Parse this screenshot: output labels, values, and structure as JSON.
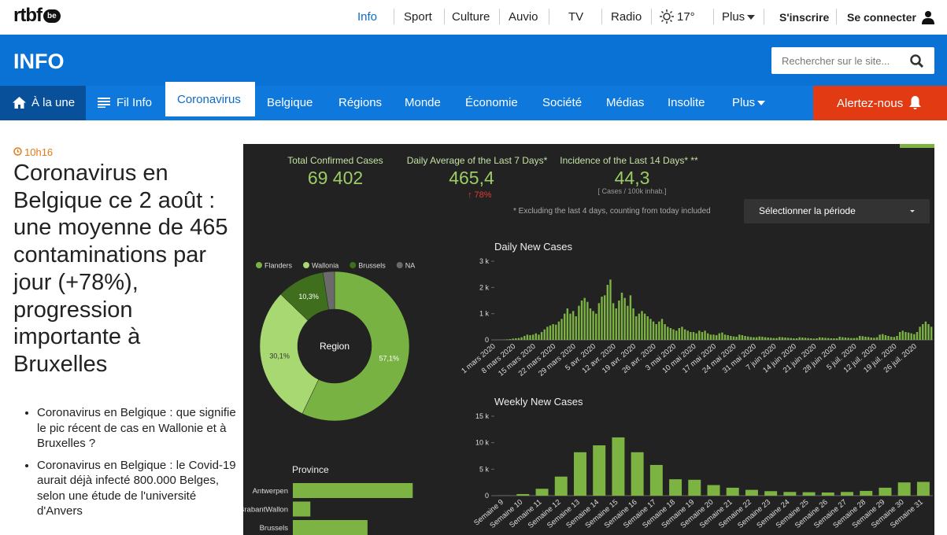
{
  "header": {
    "logo": "rtbf",
    "logo_suffix": "be",
    "nav": [
      "Info",
      "Sport",
      "Culture",
      "Auvio",
      "TV",
      "Radio"
    ],
    "weather": "17°",
    "more": "Plus",
    "signup": "S'inscrire",
    "login": "Se connecter"
  },
  "section": {
    "title": "INFO",
    "search_placeholder": "Rechercher sur le site..."
  },
  "menu": {
    "items": [
      "À la une",
      "Fil Info",
      "Coronavirus",
      "Belgique",
      "Régions",
      "Monde",
      "Économie",
      "Société",
      "Médias",
      "Insolite",
      "Plus"
    ],
    "alert": "Alertez-nous"
  },
  "article": {
    "time": "10h16",
    "headline": "Coronavirus en Belgique ce 2 août : une moyenne de 465 contaminations par jour (+78%), progression importante à Bruxelles",
    "related": [
      "Coronavirus en Belgique : que signifie le pic récent de cas en Wallonie et à Bruxelles ?",
      "Coronavirus en Belgique : le Covid-19 aurait déjà infecté 800.000 Belges, selon une étude de l'université d'Anvers"
    ]
  },
  "dashboard": {
    "kpis": [
      {
        "label": "Total Confirmed Cases",
        "value": "69 402"
      },
      {
        "label": "Daily Average of the Last 7 Days*",
        "value": "465,4",
        "change": "↑ 78%"
      },
      {
        "label": "Incidence of the Last 14 Days* **",
        "value": "44,3",
        "unit": "[ Cases / 100k inhab.]"
      }
    ],
    "footnote": "* Excluding the last 4 days, counting from today included",
    "period_select": "Sélectionner la période"
  },
  "chart_data": [
    {
      "type": "pie",
      "donut": true,
      "center_label": "Region",
      "categories": [
        "Flanders",
        "Wallonia",
        "Brussels",
        "NA"
      ],
      "values": [
        57.1,
        30.1,
        10.3,
        2.5
      ],
      "value_labels": [
        "57,1%",
        "30,1%",
        "10,3%",
        null
      ],
      "colors": [
        "#78b243",
        "#a7d872",
        "#3f6e1c",
        "#6a6a6a"
      ],
      "legend": "top"
    },
    {
      "type": "bar",
      "title": "Daily New Cases",
      "color": "#7cb342",
      "categories": [
        "1 mars 2020",
        null,
        null,
        null,
        null,
        null,
        null,
        "8 mars 2020",
        null,
        null,
        null,
        null,
        null,
        null,
        "15 mars 2020",
        null,
        null,
        null,
        null,
        null,
        null,
        "22 mars 2020",
        null,
        null,
        null,
        null,
        null,
        null,
        "29 mars 2020",
        null,
        null,
        null,
        null,
        null,
        null,
        "5 avr. 2020",
        null,
        null,
        null,
        null,
        null,
        null,
        "12 avr. 2020",
        null,
        null,
        null,
        null,
        null,
        null,
        "19 avr. 2020",
        null,
        null,
        null,
        null,
        null,
        null,
        "26 avr. 2020",
        null,
        null,
        null,
        null,
        null,
        null,
        "3 mai 2020",
        null,
        null,
        null,
        null,
        null,
        null,
        "10 mai 2020",
        null,
        null,
        null,
        null,
        null,
        null,
        "17 mai 2020",
        null,
        null,
        null,
        null,
        null,
        null,
        "24 mai 2020",
        null,
        null,
        null,
        null,
        null,
        null,
        "31 mai 2020",
        null,
        null,
        null,
        null,
        null,
        null,
        "7 juin 2020",
        null,
        null,
        null,
        null,
        null,
        null,
        "14 juin 2020",
        null,
        null,
        null,
        null,
        null,
        null,
        "21 juin 2020",
        null,
        null,
        null,
        null,
        null,
        null,
        "28 juin 2020",
        null,
        null,
        null,
        null,
        null,
        null,
        "5 juil. 2020",
        null,
        null,
        null,
        null,
        null,
        null,
        "12 juil. 2020",
        null,
        null,
        null,
        null,
        null,
        null,
        "19 juil. 2020",
        null,
        null,
        null,
        null,
        null,
        null,
        "26 juil. 2020",
        null,
        null,
        null,
        null,
        null
      ],
      "values": [
        2,
        5,
        5,
        10,
        20,
        30,
        50,
        60,
        70,
        100,
        150,
        200,
        180,
        200,
        250,
        200,
        300,
        400,
        500,
        550,
        600,
        580,
        700,
        800,
        1000,
        1200,
        1000,
        1100,
        900,
        1300,
        1500,
        1600,
        1450,
        1200,
        1100,
        1000,
        1400,
        1650,
        1700,
        2100,
        2300,
        1400,
        1200,
        1500,
        1800,
        1600,
        1300,
        1700,
        1200,
        900,
        1000,
        1100,
        1000,
        900,
        800,
        700,
        600,
        700,
        800,
        600,
        500,
        450,
        400,
        350,
        450,
        500,
        400,
        350,
        300,
        300,
        250,
        350,
        300,
        350,
        250,
        200,
        200,
        180,
        250,
        280,
        200,
        180,
        150,
        130,
        120,
        200,
        180,
        150,
        130,
        110,
        100,
        100,
        130,
        120,
        100,
        90,
        80,
        70,
        70,
        110,
        100,
        90,
        80,
        70,
        60,
        60,
        100,
        90,
        80,
        70,
        60,
        50,
        60,
        100,
        90,
        80,
        70,
        60,
        60,
        60,
        120,
        100,
        90,
        80,
        70,
        70,
        80,
        150,
        140,
        120,
        110,
        90,
        80,
        100,
        200,
        220,
        180,
        150,
        120,
        110,
        150,
        300,
        350,
        300,
        280,
        250,
        220,
        300,
        500,
        600,
        700,
        600,
        500
      ],
      "ylim": [
        0,
        3000
      ],
      "yticks": [
        0,
        {
          "value": 1000,
          "label": "1 k"
        },
        {
          "value": 2000,
          "label": "2 k"
        },
        {
          "value": 3000,
          "label": "3 k"
        }
      ],
      "grid": false
    },
    {
      "type": "bar",
      "title": "Weekly New Cases",
      "color": "#7cb342",
      "categories": [
        "Semaine 9",
        "Semaine 10",
        "Semaine 11",
        "Semaine 12",
        "Semaine 13",
        "Semaine 14",
        "Semaine 15",
        "Semaine 16",
        "Semaine 17",
        "Semaine 18",
        "Semaine 19",
        "Semaine 20",
        "Semaine 21",
        "Semaine 22",
        "Semaine 23",
        "Semaine 24",
        "Semaine 25",
        "Semaine 26",
        "Semaine 27",
        "Semaine 28",
        "Semaine 29",
        "Semaine 30",
        "Semaine 31"
      ],
      "values": [
        20,
        300,
        1300,
        3600,
        8200,
        9500,
        11000,
        8200,
        5800,
        3100,
        3000,
        2000,
        1500,
        1100,
        850,
        700,
        650,
        600,
        700,
        900,
        1500,
        2500,
        2600
      ],
      "ylim": [
        0,
        15000
      ],
      "yticks": [
        0,
        {
          "value": 5000,
          "label": "5 k"
        },
        {
          "value": 10000,
          "label": "10 k"
        },
        {
          "value": 15000,
          "label": "15 k"
        }
      ],
      "grid": false
    },
    {
      "type": "hbar",
      "title": "Province",
      "color": "#7cb342",
      "categories": [
        "Antwerpen",
        "BrabantWallon",
        "Brussels"
      ],
      "values": [
        13000,
        1900,
        8100
      ],
      "xlim": [
        0,
        14000
      ]
    }
  ]
}
